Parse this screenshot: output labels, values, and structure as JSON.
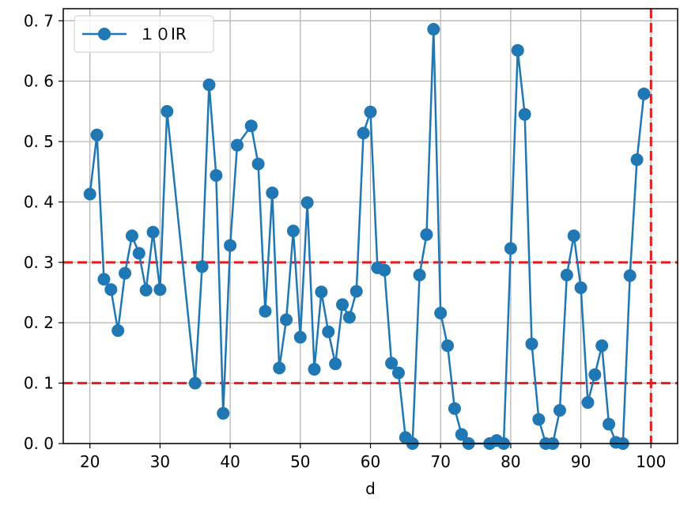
{
  "chart_data": {
    "type": "line",
    "title": "",
    "xlabel": "d",
    "ylabel": "",
    "xlim": [
      16.2,
      103.8
    ],
    "ylim": [
      0.0,
      0.72
    ],
    "x_ticks": [
      20,
      30,
      40,
      50,
      60,
      70,
      80,
      90,
      100
    ],
    "x_tick_labels": [
      "20",
      "30",
      "40",
      "50",
      "60",
      "70",
      "80",
      "90",
      "100"
    ],
    "y_ticks": [
      0.0,
      0.1,
      0.2,
      0.3,
      0.4,
      0.5,
      0.6,
      0.7
    ],
    "y_tick_labels": [
      "0. 0",
      "0. 1",
      "0. 2",
      "0. 3",
      "0. 4",
      "0. 5",
      "0. 6",
      "0. 7"
    ],
    "grid": true,
    "legend_position": "top-left",
    "colors": {
      "series": "#1f77b4",
      "reference": "#e41a1c",
      "grid": "#b0b0b0"
    },
    "series": [
      {
        "name": "１０IR",
        "marker": "circle",
        "x": [
          20,
          21,
          22,
          23,
          24,
          25,
          26,
          27,
          28,
          29,
          30,
          31,
          35,
          36,
          37,
          38,
          39,
          40,
          41,
          43,
          44,
          45,
          46,
          47,
          48,
          49,
          50,
          51,
          52,
          53,
          54,
          55,
          56,
          57,
          58,
          59,
          60,
          61,
          62,
          63,
          64,
          65,
          66,
          67,
          68,
          69,
          70,
          71,
          72,
          73,
          74,
          77,
          78,
          79,
          80,
          81,
          82,
          83,
          84,
          85,
          86,
          87,
          88,
          89,
          90,
          91,
          92,
          93,
          94,
          95,
          96,
          97,
          98,
          99
        ],
        "y": [
          0.413,
          0.511,
          0.272,
          0.255,
          0.187,
          0.282,
          0.344,
          0.315,
          0.254,
          0.35,
          0.255,
          0.55,
          0.1,
          0.293,
          0.594,
          0.444,
          0.05,
          0.328,
          0.494,
          0.526,
          0.463,
          0.219,
          0.415,
          0.125,
          0.205,
          0.352,
          0.176,
          0.399,
          0.123,
          0.251,
          0.185,
          0.132,
          0.23,
          0.209,
          0.252,
          0.514,
          0.549,
          0.291,
          0.287,
          0.133,
          0.117,
          0.01,
          0.0,
          0.279,
          0.346,
          0.686,
          0.216,
          0.162,
          0.058,
          0.015,
          0.0,
          0.0,
          0.005,
          0.0,
          0.323,
          0.651,
          0.545,
          0.165,
          0.04,
          0.0,
          0.0,
          0.055,
          0.279,
          0.344,
          0.258,
          0.068,
          0.114,
          0.162,
          0.032,
          0.002,
          0.0,
          0.278,
          0.47,
          0.579
        ]
      }
    ],
    "reference_lines": [
      {
        "orientation": "horizontal",
        "value": 0.3,
        "style": "dashed"
      },
      {
        "orientation": "horizontal",
        "value": 0.1,
        "style": "dashed"
      },
      {
        "orientation": "vertical",
        "value": 100,
        "style": "dashed"
      }
    ]
  }
}
